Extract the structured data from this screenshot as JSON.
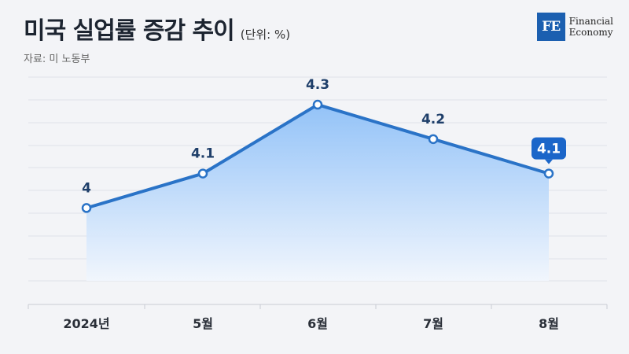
{
  "header": {
    "title": "미국 실업률 증감 추이",
    "unit": "(단위: %)",
    "source": "자료: 미 노동부"
  },
  "logo": {
    "mark": "FE",
    "line1": "Financial",
    "line2": "Economy"
  },
  "colors": {
    "line": "#2a73c7",
    "area_top": "#8ec0f8",
    "area_bottom": "#f1f6fd",
    "highlight_badge": "#1b66c9"
  },
  "chart_data": {
    "type": "area",
    "categories": [
      "2024년",
      "5월",
      "6월",
      "7월",
      "8월"
    ],
    "series": [
      {
        "values": [
          4,
          4.1,
          4.3,
          4.2,
          4.1
        ]
      }
    ],
    "data_labels": [
      "4",
      "4.1",
      "4.3",
      "4.2",
      "4.1"
    ],
    "highlighted_point": "8월",
    "ylim": [
      3.72,
      4.38
    ],
    "grid": true
  }
}
